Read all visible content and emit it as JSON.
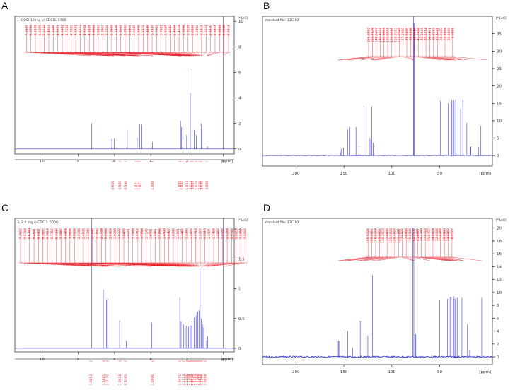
{
  "figure": {
    "panels": [
      {
        "letter": "A",
        "header": "1 (CDCl  10 mg in CDCl3, 5700",
        "type": "1h",
        "xlim": [
          11.5,
          -0.6
        ],
        "xticks": [
          10,
          8,
          6,
          4,
          2,
          0
        ],
        "xunit": "[ppm]",
        "ylim": [
          -0.4,
          10.4
        ],
        "yticks": [
          0,
          2,
          4,
          6,
          8,
          10
        ],
        "yunit": "[*1e6]",
        "peaks": [
          [
            7.26,
            2.0
          ],
          [
            6.25,
            0.8
          ],
          [
            6.15,
            0.8
          ],
          [
            6.02,
            0.8
          ],
          [
            5.3,
            1.5
          ],
          [
            4.75,
            0.9
          ],
          [
            4.62,
            1.9
          ],
          [
            4.5,
            1.9
          ],
          [
            3.9,
            0.55
          ],
          [
            2.36,
            2.2
          ],
          [
            2.3,
            1.7
          ],
          [
            2.22,
            0.9
          ],
          [
            2.02,
            1.1
          ],
          [
            1.82,
            4.4
          ],
          [
            1.72,
            6.3
          ],
          [
            1.61,
            1.5
          ],
          [
            1.48,
            1.1
          ],
          [
            1.3,
            1.6
          ],
          [
            1.22,
            2.0
          ],
          [
            0.88,
            0.2
          ],
          [
            0.0,
            10.6
          ]
        ],
        "peak_labels": [
          "7.2647",
          "6.2598",
          "6.2376",
          "6.0396",
          "6.0234",
          "5.4053",
          "5.3886",
          "4.8571",
          "4.8402",
          "4.7281",
          "4.7082",
          "4.6921",
          "4.6773",
          "4.6104",
          "4.5926",
          "3.9008",
          "3.8862",
          "2.3907",
          "2.3755",
          "2.3608",
          "2.3396",
          "2.3162",
          "2.2980",
          "2.0461",
          "2.0285",
          "1.8496",
          "1.8371",
          "1.8249",
          "1.7320",
          "1.7203",
          "1.7081",
          "1.6168",
          "1.6033",
          "1.4856",
          "1.4714",
          "1.3296",
          "1.3128",
          "1.2650",
          "1.2492",
          "1.2311",
          "1.2151",
          "0.9029",
          "0.8851",
          "0.8684",
          "0.0000",
          "-0.0014"
        ],
        "integrals": [
          [
            "6.1",
            "0.926"
          ],
          [
            "5.7",
            "0.986"
          ],
          [
            "5.4",
            "0.346"
          ],
          [
            "4.8",
            "1.071"
          ],
          [
            "4.7",
            "1.121"
          ],
          [
            "4.6",
            "1.071"
          ],
          [
            "3.9",
            "1.000"
          ],
          [
            "2.4",
            "1.085"
          ],
          [
            "2.3",
            "1.042"
          ],
          [
            "2.0",
            "1.053"
          ],
          [
            "1.8",
            "3.114"
          ],
          [
            "1.7",
            "3.085"
          ],
          [
            "1.5",
            "1.078"
          ],
          [
            "1.3",
            "3.126"
          ],
          [
            "1.2",
            "3.046"
          ],
          [
            "0.9",
            "3.068"
          ]
        ]
      },
      {
        "letter": "B",
        "header": "standard file: 13C 10",
        "type": "13c",
        "xlim": [
          235,
          -5
        ],
        "xticks": [
          200,
          150,
          100,
          50
        ],
        "xunit": "[ppm]",
        "ylim": [
          -3,
          40
        ],
        "yticks": [
          0,
          5,
          10,
          15,
          20,
          25,
          30,
          35
        ],
        "yunit": "[*1e6]",
        "peaks": [
          [
            153.7,
            1.0
          ],
          [
            152.9,
            2.0
          ],
          [
            150.6,
            2.3
          ],
          [
            145.9,
            7.5
          ],
          [
            143.9,
            8.2
          ],
          [
            137.4,
            8.2
          ],
          [
            134.1,
            2.6
          ],
          [
            129.1,
            14.0
          ],
          [
            122.8,
            5.0
          ],
          [
            121.8,
            4.6
          ],
          [
            120.9,
            14.0
          ],
          [
            119.6,
            3.7
          ],
          [
            118.9,
            3.1
          ],
          [
            77.3,
            40.0
          ],
          [
            77.0,
            38.0
          ],
          [
            76.7,
            38.0
          ],
          [
            49.1,
            15.8
          ],
          [
            41.3,
            15.0
          ],
          [
            40.5,
            15.0
          ],
          [
            37.5,
            16.0
          ],
          [
            36.2,
            15.6
          ],
          [
            35.0,
            16.0
          ],
          [
            33.3,
            16.2
          ],
          [
            28.2,
            13.5
          ],
          [
            25.9,
            16.1
          ],
          [
            21.7,
            9.4
          ],
          [
            17.9,
            2.6
          ],
          [
            17.4,
            2.6
          ],
          [
            9.6,
            2.5
          ],
          [
            7.0,
            8.5
          ]
        ],
        "peak_labels": [
          "155.8952",
          "155.7879",
          "148.6407",
          "145.4577",
          "131.9903",
          "121.8555",
          "120.8869",
          "118.3313",
          "115.0745",
          "77.1989",
          "76.8809",
          "76.6248",
          "48.0080",
          "41.7416",
          "40.3645",
          "37.5914",
          "36.2671",
          "35.0243",
          "33.3401",
          "28.2410",
          "25.9694",
          "20.8950",
          "0.0001"
        ],
        "integrals": []
      },
      {
        "letter": "C",
        "header": "3, 2.4 mg in CDCl3, 5000",
        "type": "1h",
        "xlim": [
          11.5,
          -0.6
        ],
        "xticks": [
          10,
          8,
          6,
          4,
          2,
          0
        ],
        "xunit": "[ppm]",
        "ylim": [
          -0.06,
          2.18
        ],
        "yticks": [
          0.0,
          0.5,
          1.0,
          1.5,
          2.0
        ],
        "yunit": "[*1e6]",
        "peaks": [
          [
            7.26,
            2.2
          ],
          [
            6.62,
            0.99
          ],
          [
            6.45,
            0.82
          ],
          [
            6.38,
            0.84
          ],
          [
            5.72,
            0.47
          ],
          [
            5.35,
            0.13
          ],
          [
            3.95,
            0.43
          ],
          [
            2.4,
            0.85
          ],
          [
            2.33,
            0.45
          ],
          [
            2.18,
            0.4
          ],
          [
            2.05,
            0.38
          ],
          [
            1.92,
            0.36
          ],
          [
            1.84,
            0.38
          ],
          [
            1.78,
            0.38
          ],
          [
            1.72,
            0.45
          ],
          [
            1.6,
            0.52
          ],
          [
            1.5,
            0.55
          ],
          [
            1.44,
            0.6
          ],
          [
            1.4,
            0.62
          ],
          [
            1.34,
            0.64
          ],
          [
            1.28,
            1.34
          ],
          [
            1.22,
            0.5
          ],
          [
            1.15,
            0.4
          ],
          [
            1.08,
            0.35
          ],
          [
            0.92,
            0.14
          ],
          [
            0.86,
            0.2
          ],
          [
            0.0,
            2.2
          ]
        ],
        "peak_labels": [
          "7.2602",
          "6.6364",
          "6.6249",
          "6.4641",
          "6.4407",
          "6.3802",
          "6.3614",
          "5.7381",
          "5.7130",
          "5.3662",
          "5.3456",
          "3.9606",
          "3.9526",
          "2.4188",
          "2.4036",
          "2.3345",
          "2.3205",
          "2.1892",
          "2.1749",
          "2.0566",
          "2.0424",
          "1.9269",
          "1.9122",
          "1.8455",
          "1.8271",
          "1.7889",
          "1.7710",
          "1.7284",
          "1.7145",
          "1.6091",
          "1.5951",
          "1.5086",
          "1.4909",
          "1.4427",
          "1.4248",
          "1.4071",
          "1.3465",
          "1.3290",
          "1.2875",
          "1.2713",
          "1.2277",
          "1.2110",
          "1.1597",
          "1.1429",
          "1.0862",
          "1.0707",
          "0.9264",
          "0.9102",
          "0.8653",
          "0.8485",
          "0.0000"
        ],
        "integrals": [
          [
            "7.3",
            "1.0853"
          ],
          [
            "6.6",
            "1.1685"
          ],
          [
            "6.4",
            "1.0770"
          ],
          [
            "5.7",
            "1.0018"
          ],
          [
            "5.4",
            "0.3765"
          ],
          [
            "3.9",
            "1.0006"
          ],
          [
            "2.4",
            "1.0471"
          ],
          [
            "2.2",
            "2.1014"
          ],
          [
            "2.0",
            "1.1186"
          ],
          [
            "1.9",
            "1.1209"
          ],
          [
            "1.8",
            "1.1049"
          ],
          [
            "1.7",
            "1.0734"
          ],
          [
            "1.6",
            "2.1137"
          ],
          [
            "1.5",
            "2.1043"
          ],
          [
            "1.4",
            "2.1266"
          ],
          [
            "1.3",
            "3.1012"
          ],
          [
            "1.2",
            "3.1066"
          ],
          [
            "1.0",
            "3.0004"
          ]
        ]
      },
      {
        "letter": "D",
        "header": "standard file: 13C 10",
        "type": "13c",
        "xlim": [
          235,
          -5
        ],
        "xticks": [
          200,
          150,
          100,
          50
        ],
        "xunit": "[ppm]",
        "ylim": [
          -1.2,
          21.5
        ],
        "yticks": [
          0,
          2,
          4,
          6,
          8,
          10,
          12,
          14,
          16,
          18,
          20
        ],
        "yunit": "[*1e6]",
        "peaks": [
          [
            155.9,
            2.5
          ],
          [
            155.2,
            2.5
          ],
          [
            148.9,
            3.8
          ],
          [
            145.9,
            4.0
          ],
          [
            141.0,
            1.4
          ],
          [
            133.0,
            5.6
          ],
          [
            125.0,
            3.3
          ],
          [
            120.3,
            12.7
          ],
          [
            78.1,
            20.0
          ],
          [
            77.0,
            20.0
          ],
          [
            75.6,
            3.5
          ],
          [
            74.9,
            3.5
          ],
          [
            50.2,
            8.9
          ],
          [
            42.0,
            9.0
          ],
          [
            39.2,
            9.3
          ],
          [
            38.0,
            9.3
          ],
          [
            35.8,
            9.0
          ],
          [
            35.0,
            9.4
          ],
          [
            34.0,
            9.1
          ],
          [
            31.8,
            9.2
          ],
          [
            26.8,
            9.2
          ],
          [
            21.0,
            5.1
          ],
          [
            18.7,
            1.0
          ],
          [
            6.1,
            9.2
          ]
        ],
        "peak_labels": [
          "155.9226",
          "155.2251",
          "148.8254",
          "145.8651",
          "136.2623",
          "132.9835",
          "128.8828",
          "120.4627",
          "115.4897",
          "77.6822",
          "77.0000",
          "76.8836",
          "60.2537",
          "41.8677",
          "39.2543",
          "37.9713",
          "35.6797",
          "34.8624",
          "32.4586",
          "31.0564",
          "26.3843",
          "24.8952",
          "6.0177"
        ],
        "integrals": []
      }
    ]
  }
}
